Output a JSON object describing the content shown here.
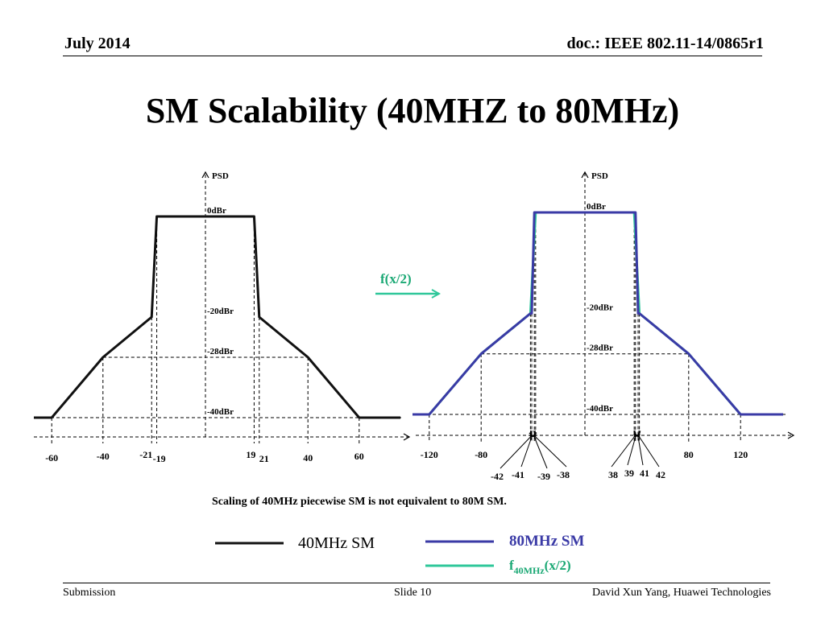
{
  "header": {
    "date": "July 2014",
    "doc": "doc.: IEEE 802.11-14/0865r1"
  },
  "title": "SM Scalability (40MHZ to 80MHz)",
  "caption": "Scaling of 40MHz piecewise SM is not equivalent to 80M SM.",
  "arrow_label": "f(x/2)",
  "footer": {
    "left": "Submission",
    "center": "Slide 10",
    "right": "David Xun Yang, Huawei Technologies"
  },
  "colors": {
    "sm40": "#111111",
    "sm80": "#3a3aa6",
    "scaled": "#2fc79a"
  },
  "chart_data": [
    {
      "type": "line",
      "ylabel": "PSD",
      "level_labels": [
        "0dBr",
        "-20dBr",
        "-28dBr",
        "-40dBr"
      ],
      "tick_labels": [
        "-60",
        "-40",
        "-21",
        "-19",
        "19",
        "21",
        "40",
        "60"
      ],
      "series": [
        {
          "name": "40MHz SM",
          "x": [
            -60,
            -40,
            -21,
            -19,
            19,
            21,
            40,
            60
          ],
          "y": [
            -40,
            -28,
            -20,
            0,
            0,
            -20,
            -28,
            -40
          ]
        }
      ]
    },
    {
      "type": "line",
      "ylabel": "PSD",
      "level_labels": [
        "0dBr",
        "-20dBr",
        "-28dBr",
        "-40dBr"
      ],
      "tick_labels": [
        "-120",
        "-80",
        "80",
        "120"
      ],
      "lower_tick_labels": [
        "-42",
        "-41",
        "-39",
        "-38",
        "38",
        "39",
        "41",
        "42"
      ],
      "series": [
        {
          "name": "80MHz SM",
          "x": [
            -120,
            -80,
            -42,
            -41,
            -39,
            -38,
            38,
            39,
            41,
            42,
            80,
            120
          ],
          "y": [
            -40,
            -28,
            -20,
            -20,
            0,
            0,
            0,
            0,
            -20,
            -20,
            -28,
            -40
          ]
        },
        {
          "name": "f40MHz(x/2)",
          "x": [
            -120,
            -80,
            -42,
            -38,
            38,
            42,
            80,
            120
          ],
          "y": [
            -40,
            -28,
            -20,
            0,
            0,
            -20,
            -28,
            -40
          ]
        }
      ]
    }
  ],
  "legend": {
    "sm40": "40MHz SM",
    "sm80": "80MHz SM",
    "scaled_prefix": "f",
    "scaled_sub": "40MHz",
    "scaled_suffix": "(x/2)"
  }
}
